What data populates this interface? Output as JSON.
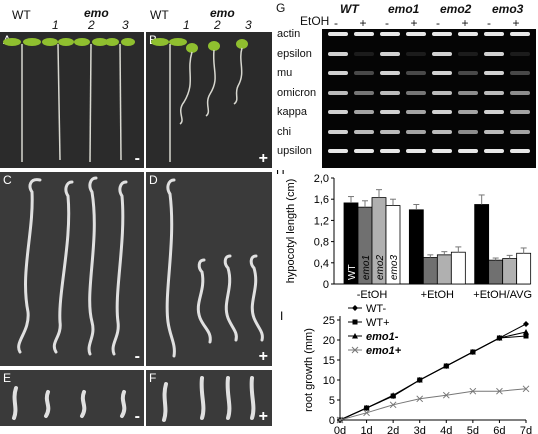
{
  "panelA_header": {
    "wt": "WT",
    "emo": "emo",
    "nums": [
      "1",
      "2",
      "3"
    ]
  },
  "panelB_header": {
    "wt": "WT",
    "emo": "emo",
    "nums": [
      "1",
      "2",
      "3"
    ]
  },
  "photo_panels": [
    {
      "letter": "A",
      "sign": "-"
    },
    {
      "letter": "B",
      "sign": "+"
    },
    {
      "letter": "C",
      "sign": "-"
    },
    {
      "letter": "D",
      "sign": "+"
    },
    {
      "letter": "E",
      "sign": "-"
    },
    {
      "letter": "F",
      "sign": "+"
    }
  ],
  "gel": {
    "letter": "G",
    "treatment_label": "EtOH",
    "lanes": [
      "-",
      "+",
      "-",
      "+",
      "-",
      "+",
      "-",
      "+"
    ],
    "lines": [
      "WT",
      "emo1",
      "emo2",
      "emo3"
    ],
    "genes": [
      "actin",
      "epsilon",
      "mu",
      "omicron",
      "kappa",
      "chi",
      "upsilon"
    ],
    "band_intensity": [
      [
        1,
        1,
        1,
        1,
        1,
        1,
        1,
        1
      ],
      [
        0.9,
        0.1,
        0.9,
        0.1,
        0.9,
        0.1,
        0.9,
        0.1
      ],
      [
        0.9,
        0.3,
        0.9,
        0.3,
        0.9,
        0.3,
        0.9,
        0.3
      ],
      [
        0.8,
        0.5,
        0.8,
        0.5,
        0.8,
        0.6,
        0.8,
        0.6
      ],
      [
        0.9,
        0.7,
        0.9,
        0.7,
        0.9,
        0.7,
        0.9,
        0.7
      ],
      [
        0.9,
        0.8,
        0.8,
        0.7,
        0.8,
        0.6,
        0.8,
        0.7
      ],
      [
        1,
        1,
        1,
        1,
        1,
        1,
        1,
        1
      ]
    ]
  },
  "chart_data": [
    {
      "panel": "H",
      "type": "bar",
      "ylabel": "hypocotyl length (cm)",
      "ylim": [
        0,
        2.0
      ],
      "yticks": [
        "0",
        "0,4",
        "0,8",
        "1,2",
        "1,6",
        "2,0"
      ],
      "categories": [
        "-EtOH",
        "+EtOH",
        "+EtOH/AVG"
      ],
      "series": [
        {
          "name": "WT",
          "color": "#000000",
          "values": [
            1.53,
            1.4,
            1.5
          ],
          "errors": [
            0.12,
            0.1,
            0.18
          ]
        },
        {
          "name": "emo1",
          "color": "#707070",
          "values": [
            1.45,
            0.5,
            0.45
          ],
          "errors": [
            0.12,
            0.05,
            0.04
          ]
        },
        {
          "name": "emo2",
          "color": "#b0b0b0",
          "values": [
            1.63,
            0.55,
            0.48
          ],
          "errors": [
            0.15,
            0.06,
            0.06
          ]
        },
        {
          "name": "emo3",
          "color": "#ffffff",
          "values": [
            1.48,
            0.6,
            0.58
          ],
          "errors": [
            0.12,
            0.1,
            0.1
          ]
        }
      ],
      "grid": false
    },
    {
      "panel": "I",
      "type": "line",
      "ylabel": "root growth (mm)",
      "ylim": [
        0,
        25
      ],
      "yticks": [
        "0",
        "5",
        "10",
        "15",
        "20",
        "25"
      ],
      "x": [
        "0d",
        "1d",
        "2d",
        "3d",
        "4d",
        "5d",
        "6d",
        "7d"
      ],
      "series": [
        {
          "name": "WT-",
          "marker": "diamond",
          "values": [
            0,
            3,
            6,
            10,
            13.5,
            17,
            20.5,
            24
          ]
        },
        {
          "name": "WT+",
          "marker": "square",
          "values": [
            0,
            3,
            6,
            10,
            13.5,
            17,
            20.5,
            21
          ]
        },
        {
          "name": "emo1-",
          "marker": "triangle",
          "values": [
            0,
            3,
            6.2,
            10,
            13.5,
            17,
            20.5,
            22
          ]
        },
        {
          "name": "emo1+",
          "marker": "cross",
          "values": [
            0,
            1.8,
            3.8,
            5.3,
            6.2,
            7.2,
            7.2,
            7.8
          ]
        }
      ],
      "legend": "top-left",
      "grid": false
    }
  ]
}
